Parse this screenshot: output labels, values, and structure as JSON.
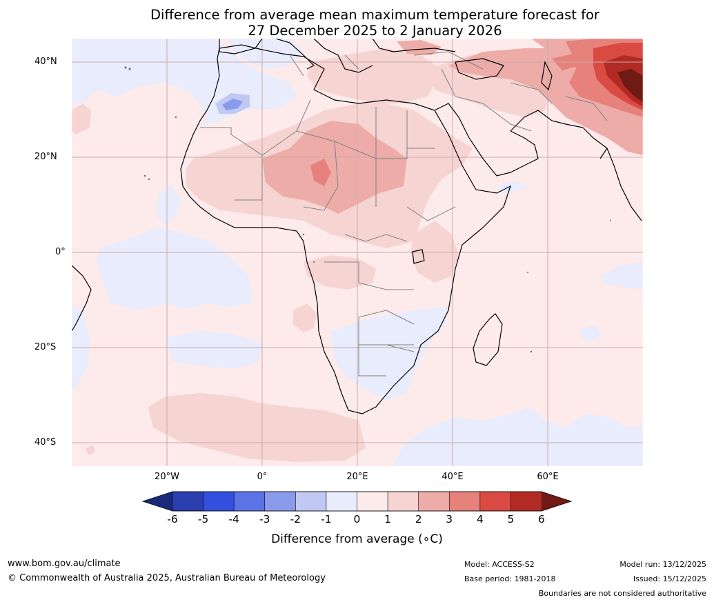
{
  "title_line1": "Difference from average mean maximum temperature forecast for",
  "title_line2": "27 December 2025 to 2 January 2026",
  "lat_labels": [
    "40°N",
    "20°N",
    "0°",
    "20°S",
    "40°S"
  ],
  "lon_labels": [
    "20°W",
    "0°",
    "20°E",
    "40°E",
    "60°E"
  ],
  "colorbar": {
    "label": "Difference from average (∘C)",
    "ticks": [
      "-6",
      "-5",
      "-4",
      "-3",
      "-2",
      "-1",
      "0",
      "1",
      "2",
      "3",
      "4",
      "5",
      "6"
    ],
    "colors": [
      "#1a2a7a",
      "#2a3eb0",
      "#3350e0",
      "#5a73e6",
      "#8a9bec",
      "#c0c8f4",
      "#e8ecfc",
      "#fcebea",
      "#f6d4d2",
      "#eeaca8",
      "#e6817b",
      "#d84a42",
      "#b22a24",
      "#701a14"
    ]
  },
  "map_colors": {
    "ocean_base": "#fcebea",
    "light_blue": "#e8ecfc",
    "mid_blue": "#c0c8f4",
    "blue3": "#8a9bec",
    "pink2": "#f6d4d2",
    "red3": "#eeaca8",
    "red4": "#e6817b",
    "red5": "#d84a42",
    "red6": "#b22a24",
    "darkred": "#701a14"
  },
  "footer": {
    "url": "www.bom.gov.au/climate",
    "copyright": "© Commonwealth of Australia 2025, Australian Bureau of Meteorology",
    "model": "Model: ACCESS-S2",
    "base_period": "Base period: 1981-2018",
    "model_run": "Model run: 13/12/2025",
    "issued": "Issued: 15/12/2025",
    "disclaimer": "Boundaries are not considered authoritative"
  }
}
